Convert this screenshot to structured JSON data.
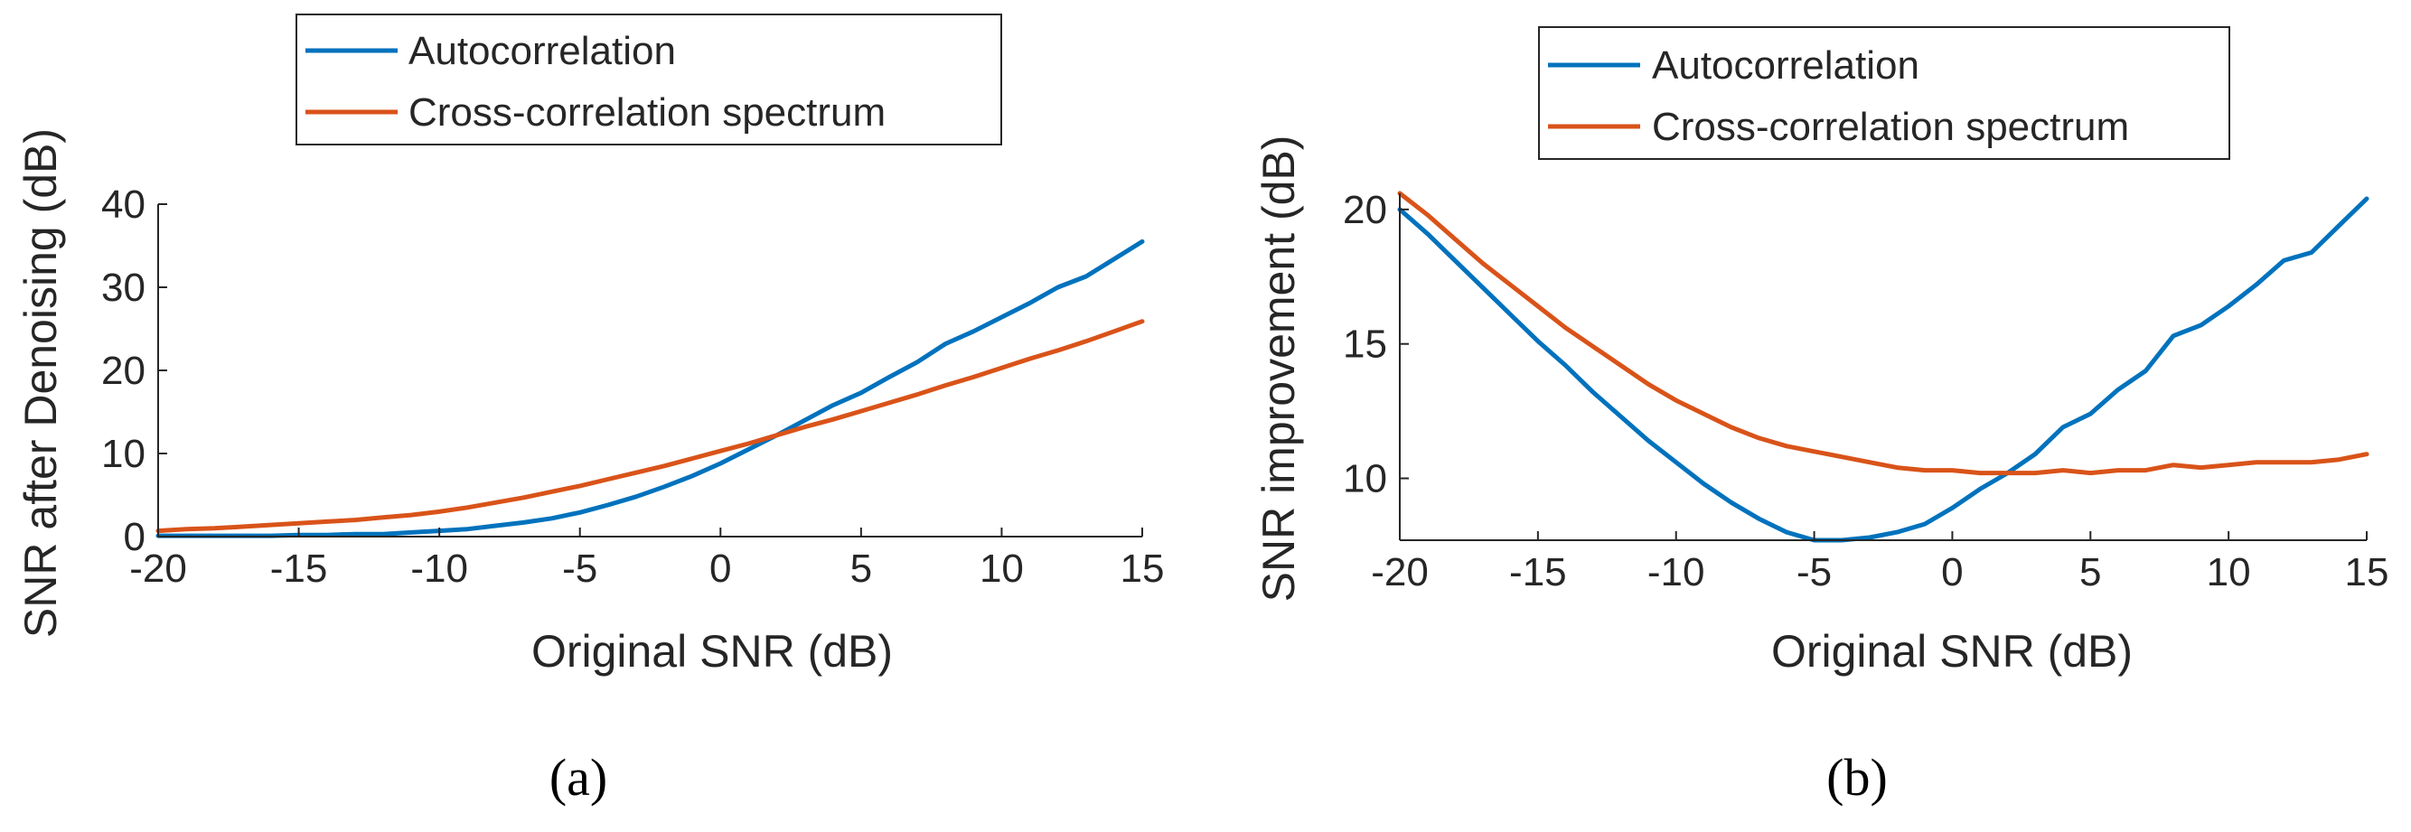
{
  "chart_data": [
    {
      "type": "line",
      "panel_label": "a",
      "title": "",
      "xlabel": "Original SNR (dB)",
      "ylabel": "SNR after Denoising (dB)",
      "xlim": [
        -20,
        15
      ],
      "ylim": [
        0,
        40
      ],
      "xticks": [
        -20,
        -15,
        -10,
        -5,
        0,
        5,
        10,
        15
      ],
      "yticks": [
        0,
        10,
        20,
        30,
        40
      ],
      "legend_position": "above-plot-left",
      "x": [
        -20,
        -19,
        -18,
        -17,
        -16,
        -15,
        -14,
        -13,
        -12,
        -11,
        -10,
        -9,
        -8,
        -7,
        -6,
        -5,
        -4,
        -3,
        -2,
        -1,
        0,
        1,
        2,
        3,
        4,
        5,
        6,
        7,
        8,
        9,
        10,
        11,
        12,
        13,
        14,
        15
      ],
      "series": [
        {
          "name": "Autocorrelation",
          "color": "#0072BD",
          "values": [
            0.1,
            0.1,
            0.1,
            0.1,
            0.1,
            0.2,
            0.2,
            0.3,
            0.3,
            0.5,
            0.7,
            0.9,
            1.3,
            1.7,
            2.2,
            2.9,
            3.8,
            4.8,
            6.0,
            7.3,
            8.8,
            10.5,
            12.2,
            14.0,
            15.8,
            17.3,
            19.2,
            21.0,
            23.2,
            24.7,
            26.4,
            28.1,
            30.0,
            31.3,
            33.4,
            35.5
          ]
        },
        {
          "name": "Cross-correlation spectrum",
          "color": "#D95319",
          "values": [
            0.7,
            0.9,
            1.0,
            1.2,
            1.4,
            1.6,
            1.8,
            2.0,
            2.3,
            2.6,
            3.0,
            3.5,
            4.1,
            4.7,
            5.4,
            6.1,
            6.9,
            7.7,
            8.5,
            9.4,
            10.3,
            11.2,
            12.2,
            13.2,
            14.1,
            15.1,
            16.1,
            17.1,
            18.2,
            19.2,
            20.3,
            21.4,
            22.4,
            23.5,
            24.7,
            25.9
          ]
        }
      ]
    },
    {
      "type": "line",
      "panel_label": "b",
      "title": "",
      "xlabel": "Original SNR (dB)",
      "ylabel": "SNR improvement (dB)",
      "xlim": [
        -20,
        15
      ],
      "ylim": [
        7.7,
        20.6
      ],
      "xticks": [
        -20,
        -15,
        -10,
        -5,
        0,
        5,
        10,
        15
      ],
      "yticks": [
        10,
        15,
        20
      ],
      "legend_position": "above-plot-left",
      "x": [
        -20,
        -19,
        -18,
        -17,
        -16,
        -15,
        -14,
        -13,
        -12,
        -11,
        -10,
        -9,
        -8,
        -7,
        -6,
        -5,
        -4,
        -3,
        -2,
        -1,
        0,
        1,
        2,
        3,
        4,
        5,
        6,
        7,
        8,
        9,
        10,
        11,
        12,
        13,
        14,
        15
      ],
      "series": [
        {
          "name": "Autocorrelation",
          "color": "#0072BD",
          "values": [
            20.0,
            19.1,
            18.1,
            17.1,
            16.1,
            15.1,
            14.2,
            13.2,
            12.3,
            11.4,
            10.6,
            9.8,
            9.1,
            8.5,
            8.0,
            7.7,
            7.7,
            7.8,
            8.0,
            8.3,
            8.9,
            9.6,
            10.2,
            10.9,
            11.9,
            12.4,
            13.3,
            14.0,
            15.3,
            15.7,
            16.4,
            17.2,
            18.1,
            18.4,
            19.4,
            20.4
          ]
        },
        {
          "name": "Cross-correlation spectrum",
          "color": "#D95319",
          "values": [
            20.6,
            19.8,
            18.9,
            18.0,
            17.2,
            16.4,
            15.6,
            14.9,
            14.2,
            13.5,
            12.9,
            12.4,
            11.9,
            11.5,
            11.2,
            11.0,
            10.8,
            10.6,
            10.4,
            10.3,
            10.3,
            10.2,
            10.2,
            10.2,
            10.3,
            10.2,
            10.3,
            10.3,
            10.5,
            10.4,
            10.5,
            10.6,
            10.6,
            10.6,
            10.7,
            10.9
          ]
        }
      ]
    }
  ],
  "captions": {
    "a": "(a)",
    "b": "(b)"
  },
  "legend": {
    "entry1": "Autocorrelation",
    "entry2": "Cross-correlation spectrum"
  }
}
